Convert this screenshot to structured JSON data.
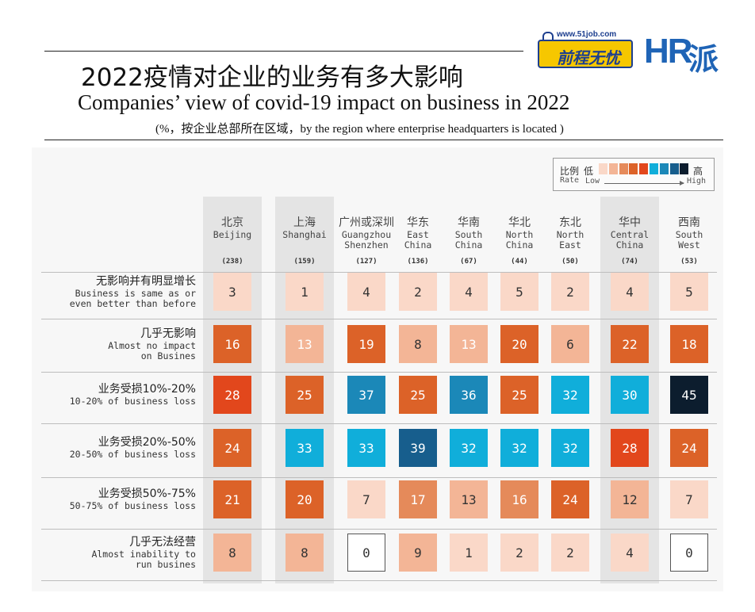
{
  "title_zh": "2022疫情对企业的业务有多大影响",
  "title_en": "Companies’ view of covid-19 impact on business in 2022",
  "subtitle": "(%，按企业总部所在区域，by the region where enterprise headquarters is located )",
  "logos": {
    "job51_url": "www.51job.com",
    "job51_name": "前程无忧",
    "hr_text": "HR",
    "hr_pai": "派"
  },
  "legend": {
    "label_zh": "比例",
    "label_en": "Rate",
    "low_zh": "低",
    "low_en": "Low",
    "high_zh": "高",
    "high_en": "High",
    "colors": [
      "#fad8c8",
      "#f3b596",
      "#e58a5a",
      "#dc6228",
      "#e2471c",
      "#10aeda",
      "#1b88b8",
      "#175e8d",
      "#0c1d2e"
    ]
  },
  "colors": {
    "band": "#e4e4e4",
    "panel": "#f7f7f7",
    "text_dark": "#333333",
    "text_light": "#ffffff"
  },
  "chart_data": {
    "type": "heatmap",
    "title": "Companies’ view of covid-19 impact on business in 2022",
    "columns": [
      {
        "zh": "北京",
        "en": [
          "Beijing"
        ],
        "n": "(238)",
        "highlight": true
      },
      {
        "zh": "上海",
        "en": [
          "Shanghai"
        ],
        "n": "(159)",
        "highlight": true
      },
      {
        "zh": "广州或深圳",
        "en": [
          "Guangzhou",
          "Shenzhen"
        ],
        "n": "(127)",
        "highlight": false
      },
      {
        "zh": "华东",
        "en": [
          "East",
          "China"
        ],
        "n": "(136)",
        "highlight": false
      },
      {
        "zh": "华南",
        "en": [
          "South",
          "China"
        ],
        "n": "(67)",
        "highlight": false
      },
      {
        "zh": "华北",
        "en": [
          "North",
          "China"
        ],
        "n": "(44)",
        "highlight": false
      },
      {
        "zh": "东北",
        "en": [
          "North",
          "East"
        ],
        "n": "(50)",
        "highlight": false
      },
      {
        "zh": "华中",
        "en": [
          "Central",
          "China"
        ],
        "n": "(74)",
        "highlight": true
      },
      {
        "zh": "西南",
        "en": [
          "South",
          "West"
        ],
        "n": "(53)",
        "highlight": false
      }
    ],
    "rows": [
      {
        "zh": "无影响并有明显增长",
        "en": [
          "Business is same as or",
          "even better than before"
        ],
        "values": [
          3,
          1,
          4,
          2,
          4,
          5,
          2,
          4,
          5
        ]
      },
      {
        "zh": "几乎无影响",
        "en": [
          "Almost no impact",
          "on Busines"
        ],
        "values": [
          16,
          13,
          19,
          8,
          13,
          20,
          6,
          22,
          18
        ]
      },
      {
        "zh": "业务受损10%-20%",
        "en": [
          "10-20% of business loss"
        ],
        "values": [
          28,
          25,
          37,
          25,
          36,
          25,
          32,
          30,
          45
        ]
      },
      {
        "zh": "业务受损20%-50%",
        "en": [
          "20-50% of business loss"
        ],
        "values": [
          24,
          33,
          33,
          39,
          32,
          32,
          32,
          28,
          24
        ]
      },
      {
        "zh": "业务受损50%-75%",
        "en": [
          "50-75% of business loss"
        ],
        "values": [
          21,
          20,
          7,
          17,
          13,
          16,
          24,
          12,
          7
        ]
      },
      {
        "zh": "几乎无法经营",
        "en": [
          "Almost inability to",
          "run busines"
        ],
        "values": [
          8,
          8,
          0,
          9,
          1,
          2,
          2,
          4,
          0
        ]
      }
    ]
  }
}
